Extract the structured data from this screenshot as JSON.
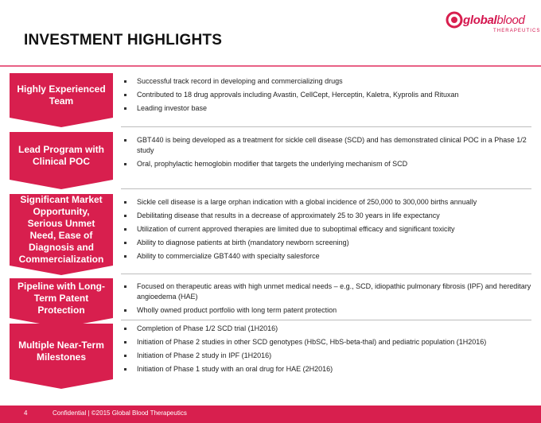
{
  "header": {
    "title": "INVESTMENT HIGHLIGHTS",
    "logo_word_bold": "global",
    "logo_word_light": "blood",
    "logo_sub": "THERAPEUTICS",
    "brand_color": "#d81f4e"
  },
  "rows": [
    {
      "label": "Highly Experienced Team",
      "bullets": [
        "Successful track record in developing and commercializing drugs",
        "Contributed to 18 drug approvals including Avastin, CellCept, Herceptin, Kaletra, Kyprolis and Rituxan",
        "Leading investor base"
      ]
    },
    {
      "label": "Lead Program with Clinical POC",
      "bullets": [
        "GBT440 is being developed as a treatment for sickle cell disease (SCD) and has demonstrated clinical POC in a Phase 1/2 study",
        "Oral, prophylactic hemoglobin modifier that targets the underlying mechanism of SCD"
      ]
    },
    {
      "label": "Significant Market Opportunity, Serious Unmet Need, Ease of Diagnosis and Commercialization",
      "bullets": [
        "Sickle cell disease is a large orphan indication with a global incidence of 250,000 to 300,000 births annually",
        "Debilitating disease that results in a decrease of approximately 25 to 30 years in life expectancy",
        "Utilization of current approved therapies are limited due to suboptimal efficacy and significant toxicity",
        "Ability to diagnose patients at birth (mandatory newborn screening)",
        "Ability to commercialize GBT440 with specialty salesforce"
      ]
    },
    {
      "label": "Pipeline with Long-Term Patent Protection",
      "bullets": [
        "Focused on therapeutic areas with high unmet medical needs – e.g., SCD, idiopathic pulmonary fibrosis (IPF) and hereditary angioedema (HAE)",
        "Wholly owned product portfolio with long term patent protection"
      ]
    },
    {
      "label": "Multiple Near-Term Milestones",
      "bullets": [
        "Completion of Phase 1/2 SCD trial (1H2016)",
        "Initiation of Phase 2 studies in other SCD genotypes (HbSC, HbS-beta-thal) and pediatric population (1H2016)",
        "Initiation of Phase 2 study in IPF (1H2016)",
        "Initiation of Phase 1 study with an oral drug for HAE (2H2016)"
      ]
    }
  ],
  "footer": {
    "page": "4",
    "text": "Confidential | ©2015 Global Blood Therapeutics"
  }
}
